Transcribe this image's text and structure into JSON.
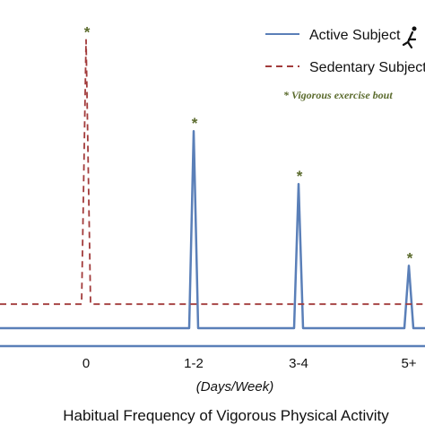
{
  "colors": {
    "active": "#5a7fb8",
    "sedentary": "#a23b3b",
    "asterisk": "#5b6b2d",
    "axis": "#5a7fb8"
  },
  "chart_data": {
    "type": "line",
    "title": "",
    "xlabel": "Habitual Frequency of Vigorous Physical Activity",
    "x_unit": "(Days/Week)",
    "categories": [
      "0",
      "1-2",
      "3-4",
      "5+"
    ],
    "series": [
      {
        "name": "Active Subject",
        "style": "solid",
        "baseline": 0,
        "spike_categories": [
          "1-2",
          "3-4",
          "5+"
        ],
        "spike_heights": [
          0.82,
          0.6,
          0.26
        ]
      },
      {
        "name": "Sedentary Subject",
        "style": "dashed",
        "baseline": 0.1,
        "spike_categories": [
          "0"
        ],
        "spike_heights": [
          1.2
        ]
      }
    ],
    "spike_marker": "*",
    "annotation": "* Vigorous exercise bout",
    "ylim": [
      -0.1,
      1.35
    ],
    "grid": false,
    "y_ticks": false,
    "legend_position": "top-right"
  },
  "legend": {
    "active_label": "Active Subject",
    "sedentary_label": "Sedentary Subject",
    "note": "* Vigorous exercise bout"
  }
}
